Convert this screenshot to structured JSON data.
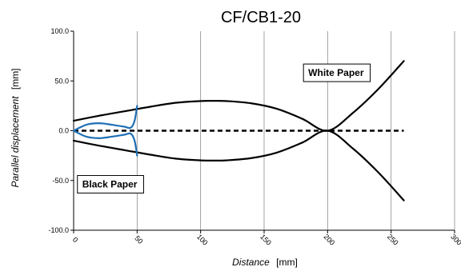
{
  "chart_data": {
    "type": "line",
    "title": "CF/CB1-20",
    "xlabel_main": "Distance",
    "xlabel_unit": "[mm]",
    "ylabel_main": "Parallel displacement",
    "ylabel_unit": "[mm]",
    "xlim": [
      0,
      300
    ],
    "ylim": [
      -100,
      100
    ],
    "x_ticks": [
      {
        "value": 0,
        "label": "0"
      },
      {
        "value": 50,
        "label": "50"
      },
      {
        "value": 100,
        "label": "100"
      },
      {
        "value": 150,
        "label": "150"
      },
      {
        "value": 200,
        "label": "200"
      },
      {
        "value": 250,
        "label": "250"
      },
      {
        "value": 300,
        "label": "300"
      }
    ],
    "y_ticks": [
      {
        "value": 100,
        "label": "100.0"
      },
      {
        "value": 50,
        "label": "50.0"
      },
      {
        "value": 0,
        "label": "0.0"
      },
      {
        "value": -50,
        "label": "-50.0"
      },
      {
        "value": -100,
        "label": "-100.0"
      }
    ],
    "grid": {
      "vertical": true,
      "horizontal": false
    },
    "annotations": [
      {
        "label": "White Paper",
        "x": 181,
        "y": 67
      },
      {
        "label": "Black Paper",
        "x": 3,
        "y": -45
      }
    ],
    "series": [
      {
        "color": "#000000",
        "style": "solid",
        "x": [
          0,
          20,
          40,
          60,
          80,
          100,
          110,
          120,
          140,
          160,
          180,
          200,
          220,
          240,
          260
        ],
        "y": [
          10,
          15,
          19.5,
          24,
          28,
          29.8,
          30,
          29.8,
          27.5,
          22,
          12,
          0,
          18,
          42,
          70
        ]
      },
      {
        "color": "#000000",
        "style": "solid",
        "x": [
          0,
          20,
          40,
          60,
          80,
          100,
          110,
          120,
          140,
          160,
          180,
          200,
          220,
          240,
          260
        ],
        "y": [
          -10,
          -15,
          -19.5,
          -24,
          -28,
          -29.8,
          -30,
          -29.8,
          -27.5,
          -22,
          -12,
          0,
          -18,
          -42,
          -70
        ]
      },
      {
        "color": "#000000",
        "style": "dashed",
        "x": [
          0,
          260
        ],
        "y": [
          0,
          0
        ]
      },
      {
        "color": "#1f6fb5",
        "style": "solid",
        "x": [
          0,
          10,
          20,
          30,
          40,
          45,
          48,
          50
        ],
        "y": [
          0,
          6,
          7.5,
          6,
          4,
          3,
          10,
          25
        ]
      },
      {
        "color": "#1f6fb5",
        "style": "solid",
        "x": [
          0,
          10,
          20,
          30,
          40,
          45,
          48,
          50
        ],
        "y": [
          0,
          -6,
          -7.5,
          -6,
          -4,
          -3,
          -10,
          -25
        ]
      }
    ]
  }
}
